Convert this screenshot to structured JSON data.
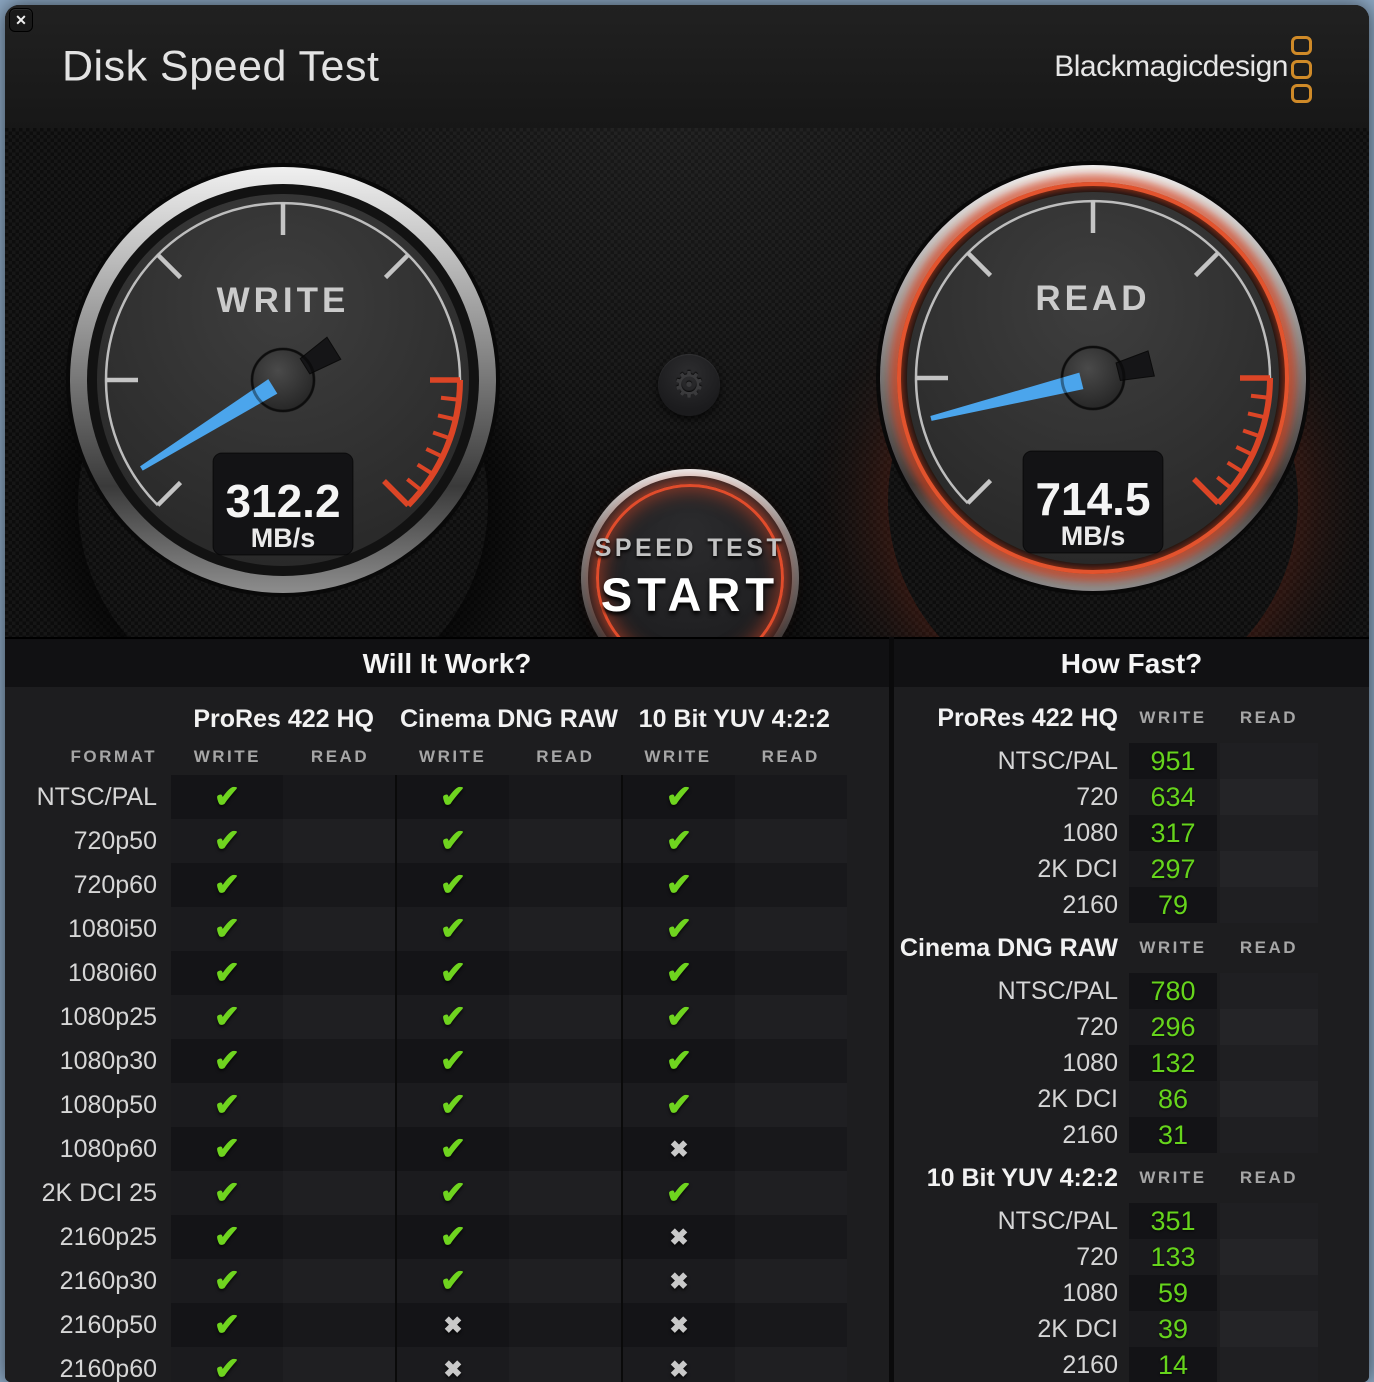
{
  "window": {
    "title": "Disk Speed Test",
    "brand": "Blackmagicdesign",
    "close_glyph": "✕"
  },
  "colors": {
    "needle_blue": "#4ba5ec",
    "redline": "#dc4526",
    "result_green": "#66d41c",
    "check_green": "#6fd41f",
    "brand_orange": "#cf8a28"
  },
  "gauges": {
    "write": {
      "label": "WRITE",
      "value": "312.2",
      "unit": "MB/s",
      "needle_angle_deg": -122
    },
    "read": {
      "label": "READ",
      "value": "714.5",
      "unit": "MB/s",
      "needle_angle_deg": -104
    }
  },
  "start_button": {
    "line1": "SPEED TEST",
    "line2": "START"
  },
  "gear_glyph": "⚙",
  "will_it_work": {
    "title": "Will It Work?",
    "col_format": "FORMAT",
    "col_write": "WRITE",
    "col_read": "READ",
    "codecs": [
      "ProRes 422 HQ",
      "Cinema DNG RAW",
      "10 Bit YUV 4:2:2"
    ],
    "glyph_check": "✔",
    "glyph_cross": "✖",
    "rows": [
      {
        "label": "NTSC/PAL",
        "marks": [
          "check",
          "",
          "check",
          "",
          "check",
          ""
        ]
      },
      {
        "label": "720p50",
        "marks": [
          "check",
          "",
          "check",
          "",
          "check",
          ""
        ]
      },
      {
        "label": "720p60",
        "marks": [
          "check",
          "",
          "check",
          "",
          "check",
          ""
        ]
      },
      {
        "label": "1080i50",
        "marks": [
          "check",
          "",
          "check",
          "",
          "check",
          ""
        ]
      },
      {
        "label": "1080i60",
        "marks": [
          "check",
          "",
          "check",
          "",
          "check",
          ""
        ]
      },
      {
        "label": "1080p25",
        "marks": [
          "check",
          "",
          "check",
          "",
          "check",
          ""
        ]
      },
      {
        "label": "1080p30",
        "marks": [
          "check",
          "",
          "check",
          "",
          "check",
          ""
        ]
      },
      {
        "label": "1080p50",
        "marks": [
          "check",
          "",
          "check",
          "",
          "check",
          ""
        ]
      },
      {
        "label": "1080p60",
        "marks": [
          "check",
          "",
          "check",
          "",
          "cross",
          ""
        ]
      },
      {
        "label": "2K DCI 25",
        "marks": [
          "check",
          "",
          "check",
          "",
          "check",
          ""
        ]
      },
      {
        "label": "2160p25",
        "marks": [
          "check",
          "",
          "check",
          "",
          "cross",
          ""
        ]
      },
      {
        "label": "2160p30",
        "marks": [
          "check",
          "",
          "check",
          "",
          "cross",
          ""
        ]
      },
      {
        "label": "2160p50",
        "marks": [
          "check",
          "",
          "cross",
          "",
          "cross",
          ""
        ]
      },
      {
        "label": "2160p60",
        "marks": [
          "check",
          "",
          "cross",
          "",
          "cross",
          ""
        ]
      }
    ]
  },
  "how_fast": {
    "title": "How Fast?",
    "col_write": "WRITE",
    "col_read": "READ",
    "sections": [
      {
        "codec": "ProRes 422 HQ",
        "rows": [
          {
            "label": "NTSC/PAL",
            "write": "951",
            "read": ""
          },
          {
            "label": "720",
            "write": "634",
            "read": ""
          },
          {
            "label": "1080",
            "write": "317",
            "read": ""
          },
          {
            "label": "2K DCI",
            "write": "297",
            "read": ""
          },
          {
            "label": "2160",
            "write": "79",
            "read": ""
          }
        ]
      },
      {
        "codec": "Cinema DNG RAW",
        "rows": [
          {
            "label": "NTSC/PAL",
            "write": "780",
            "read": ""
          },
          {
            "label": "720",
            "write": "296",
            "read": ""
          },
          {
            "label": "1080",
            "write": "132",
            "read": ""
          },
          {
            "label": "2K DCI",
            "write": "86",
            "read": ""
          },
          {
            "label": "2160",
            "write": "31",
            "read": ""
          }
        ]
      },
      {
        "codec": "10 Bit YUV 4:2:2",
        "rows": [
          {
            "label": "NTSC/PAL",
            "write": "351",
            "read": ""
          },
          {
            "label": "720",
            "write": "133",
            "read": ""
          },
          {
            "label": "1080",
            "write": "59",
            "read": ""
          },
          {
            "label": "2K DCI",
            "write": "39",
            "read": ""
          },
          {
            "label": "2160",
            "write": "14",
            "read": ""
          }
        ]
      }
    ]
  }
}
